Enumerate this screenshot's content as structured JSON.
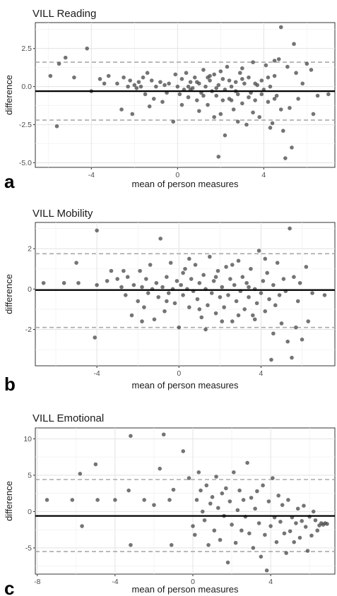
{
  "colors": {
    "point": "#4d4d4d",
    "mean_line": "#000000",
    "loa_line": "#aaaaaa",
    "grid_major": "#e3e3e3",
    "grid_minor": "#f2f2f2",
    "panel_border": "#333333"
  },
  "chart_data": [
    {
      "type": "scatter",
      "panel_label": "a",
      "title": "VILL Reading",
      "xlabel": "mean of person measures",
      "ylabel": "difference",
      "xlim": [
        -6.6,
        7.3
      ],
      "ylim": [
        -5.3,
        4.2
      ],
      "xticks": [
        -4,
        0,
        4
      ],
      "yticks": [
        2.5,
        0.0,
        -2.5,
        -5.0
      ],
      "ytick_labels": [
        "2.5",
        "0.0",
        "-2.5",
        "-5.0"
      ],
      "mean_difference": -0.3,
      "limits_of_agreement": [
        1.6,
        -2.2
      ],
      "grid": true,
      "points": [
        [
          -5.2,
          1.9
        ],
        [
          -5.5,
          1.5
        ],
        [
          -5.9,
          0.7
        ],
        [
          -4.2,
          2.5
        ],
        [
          -4.8,
          0.6
        ],
        [
          -5.6,
          -2.6
        ],
        [
          -4.0,
          -0.3
        ],
        [
          -3.6,
          0.5
        ],
        [
          -3.2,
          0.7
        ],
        [
          -2.8,
          0.2
        ],
        [
          -2.5,
          0.6
        ],
        [
          -2.3,
          0.0
        ],
        [
          -2.2,
          0.4
        ],
        [
          -2.0,
          0.1
        ],
        [
          -1.9,
          -0.1
        ],
        [
          -1.8,
          0.3
        ],
        [
          -1.7,
          0.0
        ],
        [
          -1.6,
          0.6
        ],
        [
          -1.5,
          -0.5
        ],
        [
          -1.4,
          0.9
        ],
        [
          -1.2,
          0.4
        ],
        [
          -1.0,
          0.0
        ],
        [
          -0.8,
          0.3
        ],
        [
          -0.6,
          0.1
        ],
        [
          -0.5,
          -0.4
        ],
        [
          -0.4,
          0.2
        ],
        [
          -0.2,
          -2.3
        ],
        [
          -1.3,
          -1.3
        ],
        [
          -2.1,
          -1.8
        ],
        [
          -0.7,
          -1.0
        ],
        [
          -1.1,
          -0.8
        ],
        [
          -3.4,
          0.2
        ],
        [
          -2.6,
          -1.5
        ],
        [
          0.0,
          0.0
        ],
        [
          0.1,
          -0.5
        ],
        [
          0.2,
          0.5
        ],
        [
          0.3,
          -0.2
        ],
        [
          0.4,
          0.9
        ],
        [
          0.5,
          -0.7
        ],
        [
          0.6,
          0.3
        ],
        [
          0.7,
          -0.1
        ],
        [
          0.8,
          0.6
        ],
        [
          0.9,
          -0.9
        ],
        [
          1.0,
          0.2
        ],
        [
          1.1,
          -0.4
        ],
        [
          1.2,
          1.1
        ],
        [
          1.3,
          0.0
        ],
        [
          1.4,
          -1.2
        ],
        [
          1.5,
          0.4
        ],
        [
          1.6,
          -0.3
        ],
        [
          1.7,
          0.8
        ],
        [
          1.8,
          -0.6
        ],
        [
          1.9,
          0.1
        ],
        [
          2.0,
          -1.8
        ],
        [
          2.1,
          0.5
        ],
        [
          2.2,
          -0.2
        ],
        [
          2.3,
          1.3
        ],
        [
          2.4,
          -0.8
        ],
        [
          2.5,
          0.0
        ],
        [
          2.6,
          -1.5
        ],
        [
          2.7,
          0.3
        ],
        [
          2.8,
          -0.5
        ],
        [
          2.9,
          0.9
        ],
        [
          3.0,
          -1.1
        ],
        [
          3.1,
          0.2
        ],
        [
          3.2,
          -2.5
        ],
        [
          3.3,
          0.6
        ],
        [
          3.4,
          -0.4
        ],
        [
          3.5,
          1.6
        ],
        [
          3.6,
          -0.9
        ],
        [
          3.7,
          0.1
        ],
        [
          3.8,
          -2.0
        ],
        [
          3.9,
          0.4
        ],
        [
          4.0,
          -0.2
        ],
        [
          4.1,
          1.4
        ],
        [
          4.2,
          -1.0
        ],
        [
          4.3,
          0.0
        ],
        [
          4.4,
          -2.4
        ],
        [
          4.5,
          0.7
        ],
        [
          4.6,
          -0.6
        ],
        [
          4.7,
          1.8
        ],
        [
          4.8,
          -1.5
        ],
        [
          0.6,
          -0.2
        ],
        [
          0.9,
          0.3
        ],
        [
          1.2,
          -0.6
        ],
        [
          1.5,
          0.7
        ],
        [
          1.8,
          -0.1
        ],
        [
          2.1,
          -0.9
        ],
        [
          2.4,
          0.4
        ],
        [
          2.7,
          -0.3
        ],
        [
          3.0,
          0.5
        ],
        [
          3.3,
          -0.7
        ],
        [
          3.6,
          0.2
        ],
        [
          3.9,
          -0.5
        ],
        [
          4.2,
          0.6
        ],
        [
          4.5,
          -0.8
        ],
        [
          1.0,
          -1.6
        ],
        [
          2.0,
          1.0
        ],
        [
          3.0,
          1.2
        ],
        [
          1.4,
          0.6
        ],
        [
          2.8,
          -2.3
        ],
        [
          2.2,
          -3.2
        ],
        [
          1.9,
          -4.6
        ],
        [
          4.8,
          3.9
        ],
        [
          5.4,
          2.8
        ],
        [
          5.0,
          -4.7
        ],
        [
          5.3,
          -4.0
        ],
        [
          4.3,
          -2.7
        ],
        [
          4.9,
          -2.9
        ],
        [
          5.5,
          0.9
        ],
        [
          5.8,
          0.2
        ],
        [
          6.0,
          1.5
        ],
        [
          6.2,
          1.1
        ],
        [
          6.5,
          -0.6
        ],
        [
          6.3,
          -1.8
        ],
        [
          7.0,
          -0.5
        ],
        [
          5.6,
          -0.8
        ],
        [
          5.2,
          -1.4
        ],
        [
          4.5,
          1.7
        ],
        [
          5.1,
          1.3
        ],
        [
          0.2,
          -1.2
        ],
        [
          -0.1,
          0.8
        ],
        [
          1.7,
          -2.0
        ],
        [
          3.5,
          -1.7
        ],
        [
          0.5,
          0.0
        ],
        [
          2.5,
          -0.9
        ]
      ]
    },
    {
      "type": "scatter",
      "panel_label": "b",
      "title": "VILL Mobility",
      "xlabel": "mean of person measures",
      "ylabel": "difference",
      "xlim": [
        -7.0,
        7.6
      ],
      "ylim": [
        -3.8,
        3.3
      ],
      "xticks": [
        -4,
        0,
        4
      ],
      "yticks": [
        2,
        0,
        -2
      ],
      "ytick_labels": [
        "2",
        "0",
        "-2"
      ],
      "mean_difference": -0.05,
      "limits_of_agreement": [
        1.75,
        -1.9
      ],
      "grid": true,
      "points": [
        [
          -6.6,
          0.3
        ],
        [
          -5.6,
          0.3
        ],
        [
          -5.0,
          1.3
        ],
        [
          -4.9,
          0.3
        ],
        [
          -4.0,
          2.9
        ],
        [
          -4.0,
          0.2
        ],
        [
          -4.1,
          -2.4
        ],
        [
          -3.3,
          0.9
        ],
        [
          -3.5,
          0.4
        ],
        [
          -3.0,
          0.5
        ],
        [
          -2.8,
          0.1
        ],
        [
          -2.6,
          -0.3
        ],
        [
          -2.5,
          0.6
        ],
        [
          -2.3,
          -1.3
        ],
        [
          -2.2,
          0.2
        ],
        [
          -2.0,
          -0.6
        ],
        [
          -1.9,
          0.9
        ],
        [
          -1.8,
          0.1
        ],
        [
          -1.7,
          -0.9
        ],
        [
          -1.6,
          0.5
        ],
        [
          -1.5,
          -0.2
        ],
        [
          -1.4,
          1.2
        ],
        [
          -1.3,
          0.0
        ],
        [
          -1.2,
          -1.5
        ],
        [
          -1.1,
          0.3
        ],
        [
          -1.0,
          -0.4
        ],
        [
          -0.9,
          2.5
        ],
        [
          -0.8,
          0.1
        ],
        [
          -0.7,
          -1.1
        ],
        [
          -0.6,
          0.6
        ],
        [
          -0.5,
          -0.2
        ],
        [
          -0.4,
          1.3
        ],
        [
          -0.3,
          0.0
        ],
        [
          -0.2,
          -0.7
        ],
        [
          -0.1,
          0.4
        ],
        [
          0.0,
          -1.9
        ],
        [
          0.1,
          0.2
        ],
        [
          0.2,
          -0.3
        ],
        [
          0.3,
          1.0
        ],
        [
          0.4,
          0.0
        ],
        [
          0.5,
          -0.9
        ],
        [
          0.6,
          0.5
        ],
        [
          0.7,
          -0.1
        ],
        [
          0.8,
          1.2
        ],
        [
          0.9,
          -0.5
        ],
        [
          1.0,
          0.3
        ],
        [
          1.1,
          -1.4
        ],
        [
          1.2,
          0.7
        ],
        [
          1.3,
          0.0
        ],
        [
          1.4,
          -0.8
        ],
        [
          1.5,
          1.6
        ],
        [
          1.6,
          -0.2
        ],
        [
          1.7,
          0.4
        ],
        [
          1.8,
          -1.2
        ],
        [
          1.9,
          0.9
        ],
        [
          2.0,
          -0.4
        ],
        [
          2.1,
          0.1
        ],
        [
          2.2,
          -0.9
        ],
        [
          2.3,
          1.1
        ],
        [
          2.4,
          -0.3
        ],
        [
          2.5,
          0.5
        ],
        [
          2.6,
          -1.6
        ],
        [
          2.7,
          0.2
        ],
        [
          2.8,
          -0.6
        ],
        [
          2.9,
          1.4
        ],
        [
          3.0,
          -0.1
        ],
        [
          3.1,
          0.6
        ],
        [
          3.2,
          -1.0
        ],
        [
          3.3,
          0.3
        ],
        [
          3.4,
          -0.4
        ],
        [
          3.5,
          1.0
        ],
        [
          3.6,
          -1.3
        ],
        [
          3.7,
          0.0
        ],
        [
          3.8,
          -0.7
        ],
        [
          3.9,
          1.9
        ],
        [
          4.0,
          -0.2
        ],
        [
          4.1,
          0.4
        ],
        [
          4.2,
          -1.1
        ],
        [
          4.3,
          0.8
        ],
        [
          4.4,
          -0.5
        ],
        [
          4.5,
          -3.5
        ],
        [
          4.6,
          0.2
        ],
        [
          4.7,
          -0.8
        ],
        [
          4.8,
          1.3
        ],
        [
          4.9,
          -0.3
        ],
        [
          5.0,
          -1.7
        ],
        [
          5.1,
          0.5
        ],
        [
          5.2,
          -0.1
        ],
        [
          5.3,
          -2.6
        ],
        [
          5.4,
          3.0
        ],
        [
          5.5,
          -3.4
        ],
        [
          5.6,
          0.6
        ],
        [
          5.7,
          -1.9
        ],
        [
          5.8,
          -0.6
        ],
        [
          6.0,
          -2.5
        ],
        [
          6.2,
          1.1
        ],
        [
          6.3,
          -1.6
        ],
        [
          6.5,
          -0.2
        ],
        [
          7.1,
          -0.3
        ],
        [
          -0.6,
          -0.6
        ],
        [
          0.2,
          0.8
        ],
        [
          1.0,
          -1.0
        ],
        [
          1.8,
          0.6
        ],
        [
          2.6,
          1.2
        ],
        [
          3.4,
          0.1
        ],
        [
          4.2,
          1.5
        ],
        [
          0.5,
          1.5
        ],
        [
          1.3,
          -2.0
        ],
        [
          2.1,
          -1.6
        ],
        [
          2.9,
          -1.3
        ],
        [
          3.7,
          -1.5
        ],
        [
          4.6,
          -2.2
        ],
        [
          5.9,
          0.3
        ],
        [
          -1.8,
          -1.6
        ],
        [
          -2.7,
          0.9
        ]
      ]
    },
    {
      "type": "scatter",
      "panel_label": "c",
      "title": "VILL Emotional",
      "xlabel": "mean of person measures",
      "ylabel": "difference",
      "xlim": [
        -8.1,
        7.3
      ],
      "ylim": [
        -8.6,
        11.5
      ],
      "xticks": [
        -8,
        -4,
        0,
        4
      ],
      "yticks": [
        10,
        5,
        0,
        -5
      ],
      "ytick_labels": [
        "10",
        "5",
        "0",
        "-5"
      ],
      "mean_difference": -0.6,
      "limits_of_agreement": [
        4.4,
        -5.5
      ],
      "grid": true,
      "points": [
        [
          -7.5,
          1.6
        ],
        [
          -6.2,
          1.6
        ],
        [
          -5.8,
          5.2
        ],
        [
          -5.0,
          6.5
        ],
        [
          -4.9,
          1.6
        ],
        [
          -5.7,
          -2.0
        ],
        [
          -4.0,
          1.6
        ],
        [
          -3.3,
          2.9
        ],
        [
          -3.2,
          10.4
        ],
        [
          -2.5,
          1.6
        ],
        [
          -1.7,
          5.9
        ],
        [
          -1.5,
          10.6
        ],
        [
          -2.0,
          0.9
        ],
        [
          -1.0,
          3.0
        ],
        [
          -1.1,
          -4.6
        ],
        [
          -0.5,
          8.3
        ],
        [
          -0.2,
          4.6
        ],
        [
          0.0,
          -2.0
        ],
        [
          0.1,
          -3.2
        ],
        [
          0.2,
          1.6
        ],
        [
          0.3,
          5.4
        ],
        [
          0.4,
          2.9
        ],
        [
          0.5,
          0.0
        ],
        [
          0.6,
          -1.2
        ],
        [
          0.7,
          3.6
        ],
        [
          0.8,
          -4.6
        ],
        [
          0.9,
          1.1
        ],
        [
          1.0,
          2.0
        ],
        [
          1.1,
          -2.6
        ],
        [
          1.2,
          4.8
        ],
        [
          1.3,
          0.5
        ],
        [
          1.4,
          -3.9
        ],
        [
          1.5,
          2.5
        ],
        [
          1.6,
          -0.6
        ],
        [
          1.7,
          3.2
        ],
        [
          1.8,
          -7.0
        ],
        [
          1.9,
          1.4
        ],
        [
          2.0,
          -1.8
        ],
        [
          2.1,
          5.4
        ],
        [
          2.2,
          -4.3
        ],
        [
          2.3,
          0.2
        ],
        [
          2.4,
          2.9
        ],
        [
          2.5,
          -2.6
        ],
        [
          2.6,
          1.6
        ],
        [
          2.7,
          -0.7
        ],
        [
          2.8,
          6.7
        ],
        [
          2.9,
          -3.0
        ],
        [
          3.0,
          1.9
        ],
        [
          3.1,
          -5.0
        ],
        [
          3.2,
          0.4
        ],
        [
          3.3,
          2.8
        ],
        [
          3.4,
          -1.6
        ],
        [
          3.5,
          -6.2
        ],
        [
          3.6,
          3.6
        ],
        [
          3.7,
          -3.2
        ],
        [
          3.8,
          -8.1
        ],
        [
          3.9,
          1.4
        ],
        [
          4.0,
          -2.0
        ],
        [
          4.1,
          4.6
        ],
        [
          4.2,
          -0.8
        ],
        [
          4.3,
          -4.2
        ],
        [
          4.4,
          2.2
        ],
        [
          4.5,
          -1.4
        ],
        [
          4.6,
          0.9
        ],
        [
          4.7,
          -3.0
        ],
        [
          4.8,
          -5.7
        ],
        [
          4.9,
          1.6
        ],
        [
          5.0,
          -2.7
        ],
        [
          5.1,
          -0.8
        ],
        [
          5.2,
          -4.2
        ],
        [
          5.3,
          -1.6
        ],
        [
          5.4,
          0.4
        ],
        [
          5.5,
          -3.6
        ],
        [
          5.6,
          -1.3
        ],
        [
          5.7,
          0.8
        ],
        [
          5.8,
          -2.1
        ],
        [
          5.9,
          -5.4
        ],
        [
          6.0,
          -0.7
        ],
        [
          6.1,
          -3.3
        ],
        [
          6.2,
          0.0
        ],
        [
          6.3,
          -1.2
        ],
        [
          6.4,
          -2.6
        ],
        [
          6.5,
          -1.9
        ],
        [
          6.6,
          -1.6
        ],
        [
          6.7,
          -1.8
        ],
        [
          6.8,
          -1.6
        ],
        [
          6.9,
          -1.7
        ],
        [
          -3.2,
          -4.6
        ],
        [
          -1.2,
          1.6
        ]
      ]
    }
  ]
}
